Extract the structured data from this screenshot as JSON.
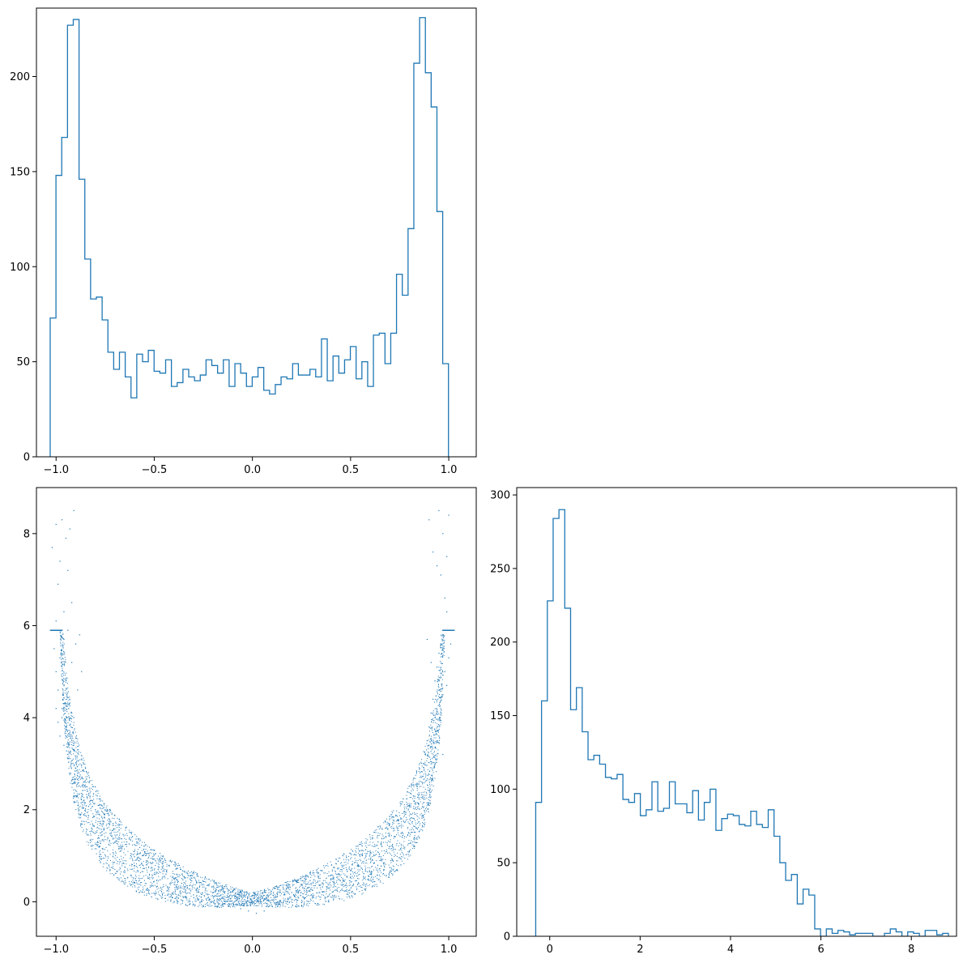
{
  "chart_data": [
    {
      "id": "hist_x",
      "type": "histogram",
      "title": "",
      "xlabel": "",
      "ylabel": "",
      "xlim": [
        -1.1,
        1.14
      ],
      "ylim": [
        0,
        236
      ],
      "xticks": [
        -1.0,
        -0.5,
        0.0,
        0.5,
        1.0
      ],
      "xtick_labels": [
        "−1.0",
        "−0.5",
        "0.0",
        "0.5",
        "1.0"
      ],
      "yticks": [
        0,
        50,
        100,
        150,
        200
      ],
      "ytick_labels": [
        "0",
        "50",
        "100",
        "150",
        "200"
      ],
      "grid": false,
      "bin_start": -1.03,
      "bin_width": 0.0294,
      "counts": [
        73,
        148,
        168,
        227,
        230,
        146,
        104,
        83,
        84,
        72,
        55,
        46,
        55,
        42,
        31,
        54,
        50,
        56,
        45,
        44,
        51,
        37,
        39,
        46,
        42,
        40,
        43,
        51,
        48,
        44,
        51,
        37,
        49,
        44,
        37,
        42,
        47,
        35,
        33,
        38,
        42,
        41,
        49,
        43,
        43,
        46,
        42,
        62,
        40,
        53,
        44,
        51,
        58,
        41,
        50,
        37,
        64,
        65,
        49,
        65,
        96,
        85,
        120,
        207,
        231,
        202,
        184,
        129,
        49
      ],
      "color": "#1f77b4"
    },
    {
      "id": "scatter_xy",
      "type": "scatter",
      "title": "",
      "xlabel": "",
      "ylabel": "",
      "xlim": [
        -1.1,
        1.14
      ],
      "ylim": [
        -0.75,
        9.0
      ],
      "xticks": [
        -1.0,
        -0.5,
        0.0,
        0.5,
        1.0
      ],
      "xtick_labels": [
        "−1.0",
        "−0.5",
        "0.0",
        "0.5",
        "1.0"
      ],
      "yticks": [
        0,
        2,
        4,
        6,
        8
      ],
      "ytick_labels": [
        "0",
        "2",
        "4",
        "6",
        "8"
      ],
      "grid": false,
      "relation": "y ≈ (x/(1−x²)^0.5)²-shaped band; points fill a U-shaped band from y≈−0.3 at x=0 up to y≈8.5 near x=±1",
      "points": [
        [
          -1.02,
          7.7
        ],
        [
          -1.0,
          8.2
        ],
        [
          -0.98,
          7.4
        ],
        [
          -0.97,
          8.3
        ],
        [
          -0.95,
          7.9
        ],
        [
          -0.93,
          8.1
        ],
        [
          -0.91,
          8.5
        ],
        [
          -0.99,
          6.9
        ],
        [
          -0.96,
          6.3
        ],
        [
          -0.92,
          6.5
        ],
        [
          -1.0,
          6.1
        ],
        [
          -0.94,
          7.2
        ],
        [
          -1.01,
          5.5
        ],
        [
          -1.0,
          5.0
        ],
        [
          -0.99,
          4.6
        ],
        [
          -0.98,
          5.3
        ],
        [
          -0.97,
          4.2
        ],
        [
          -0.96,
          5.7
        ],
        [
          -0.95,
          4.8
        ],
        [
          -0.94,
          5.9
        ],
        [
          -0.93,
          4.4
        ],
        [
          -0.92,
          5.2
        ],
        [
          -0.91,
          4.0
        ],
        [
          -0.9,
          5.6
        ],
        [
          -0.89,
          4.6
        ],
        [
          -0.88,
          5.8
        ],
        [
          -0.87,
          5.0
        ],
        [
          -1.0,
          4.2
        ],
        [
          -0.99,
          3.9
        ],
        [
          -0.98,
          3.6
        ],
        [
          -0.97,
          4.0
        ],
        [
          -0.96,
          3.4
        ],
        [
          -0.95,
          3.8
        ],
        [
          -0.94,
          3.2
        ],
        [
          -0.93,
          3.6
        ],
        [
          -0.92,
          3.0
        ],
        [
          -0.91,
          3.4
        ],
        [
          -0.9,
          2.9
        ],
        [
          -0.89,
          3.3
        ],
        [
          -0.88,
          2.7
        ],
        [
          -0.87,
          3.1
        ],
        [
          -0.86,
          2.6
        ],
        [
          -0.85,
          2.9
        ],
        [
          -0.84,
          2.4
        ],
        [
          -0.83,
          2.7
        ],
        [
          -0.82,
          2.2
        ],
        [
          -0.81,
          2.5
        ],
        [
          -0.8,
          2.0
        ],
        [
          -0.79,
          2.3
        ],
        [
          -0.78,
          1.9
        ],
        [
          -0.77,
          2.1
        ],
        [
          -0.76,
          1.7
        ],
        [
          -0.75,
          2.0
        ],
        [
          -0.74,
          1.6
        ],
        [
          -0.73,
          1.8
        ],
        [
          -0.72,
          1.5
        ],
        [
          -0.71,
          1.7
        ],
        [
          -0.7,
          1.3
        ],
        [
          -0.68,
          1.4
        ],
        [
          -0.66,
          1.2
        ],
        [
          -0.64,
          1.3
        ],
        [
          -0.62,
          1.0
        ],
        [
          -0.6,
          1.1
        ],
        [
          -0.58,
          0.9
        ],
        [
          -0.56,
          1.0
        ],
        [
          -0.54,
          0.8
        ],
        [
          -0.52,
          0.85
        ],
        [
          -0.5,
          0.6
        ],
        [
          -0.48,
          0.7
        ],
        [
          -0.46,
          0.5
        ],
        [
          -0.44,
          0.6
        ],
        [
          -0.42,
          0.4
        ],
        [
          -0.4,
          0.5
        ],
        [
          -0.38,
          0.3
        ],
        [
          -0.36,
          0.4
        ],
        [
          -0.34,
          0.2
        ],
        [
          -0.32,
          0.35
        ],
        [
          -0.3,
          0.15
        ],
        [
          -0.28,
          0.3
        ],
        [
          -0.26,
          0.1
        ],
        [
          -0.24,
          0.25
        ],
        [
          -0.22,
          0.05
        ],
        [
          -0.2,
          0.2
        ],
        [
          -0.18,
          0.0
        ],
        [
          -0.16,
          0.15
        ],
        [
          -0.14,
          -0.05
        ],
        [
          -0.12,
          0.1
        ],
        [
          -0.1,
          -0.1
        ],
        [
          -0.08,
          0.1
        ],
        [
          -0.06,
          -0.15
        ],
        [
          -0.04,
          0.05
        ],
        [
          -0.02,
          -0.2
        ],
        [
          0.0,
          0.0
        ],
        [
          0.02,
          -0.25
        ],
        [
          0.04,
          0.05
        ],
        [
          0.06,
          -0.2
        ],
        [
          0.08,
          0.1
        ],
        [
          0.1,
          -0.1
        ],
        [
          0.12,
          0.1
        ],
        [
          0.14,
          -0.05
        ],
        [
          0.16,
          0.15
        ],
        [
          0.18,
          0.0
        ],
        [
          0.2,
          0.2
        ],
        [
          0.22,
          0.05
        ],
        [
          0.24,
          0.25
        ],
        [
          0.26,
          0.1
        ],
        [
          0.28,
          0.3
        ],
        [
          0.3,
          0.15
        ],
        [
          0.32,
          0.35
        ],
        [
          0.34,
          0.2
        ],
        [
          0.36,
          0.4
        ],
        [
          0.38,
          0.3
        ],
        [
          0.4,
          0.5
        ],
        [
          0.42,
          0.4
        ],
        [
          0.44,
          0.6
        ],
        [
          0.46,
          0.5
        ],
        [
          0.48,
          0.7
        ],
        [
          0.5,
          0.6
        ],
        [
          0.52,
          0.85
        ],
        [
          0.54,
          0.8
        ],
        [
          0.56,
          1.0
        ],
        [
          0.58,
          0.9
        ],
        [
          0.6,
          1.1
        ],
        [
          0.62,
          1.0
        ],
        [
          0.64,
          1.3
        ],
        [
          0.66,
          1.2
        ],
        [
          0.68,
          1.4
        ],
        [
          0.7,
          1.3
        ],
        [
          0.72,
          1.6
        ],
        [
          0.74,
          1.6
        ],
        [
          0.76,
          1.8
        ],
        [
          0.78,
          1.9
        ],
        [
          0.8,
          2.1
        ],
        [
          0.82,
          2.3
        ],
        [
          0.84,
          2.5
        ],
        [
          0.86,
          2.7
        ],
        [
          0.87,
          3.0
        ],
        [
          0.88,
          3.2
        ],
        [
          0.89,
          3.5
        ],
        [
          0.9,
          3.8
        ],
        [
          0.91,
          4.1
        ],
        [
          0.92,
          4.4
        ],
        [
          0.93,
          4.8
        ],
        [
          0.94,
          5.1
        ],
        [
          0.95,
          5.4
        ],
        [
          0.96,
          5.6
        ],
        [
          0.97,
          4.5
        ],
        [
          0.98,
          5.0
        ],
        [
          0.89,
          5.7
        ],
        [
          0.91,
          5.2
        ],
        [
          0.93,
          4.0
        ],
        [
          0.95,
          3.6
        ],
        [
          0.97,
          3.2
        ],
        [
          0.99,
          4.7
        ],
        [
          1.0,
          5.3
        ],
        [
          1.01,
          5.6
        ],
        [
          0.99,
          6.3
        ],
        [
          0.98,
          6.6
        ],
        [
          0.96,
          7.1
        ],
        [
          0.94,
          7.3
        ],
        [
          0.92,
          7.6
        ],
        [
          0.9,
          8.3
        ],
        [
          0.97,
          8.0
        ],
        [
          0.99,
          7.5
        ],
        [
          1.0,
          8.4
        ],
        [
          0.95,
          8.5
        ]
      ],
      "color": "#1f77b4"
    },
    {
      "id": "hist_y",
      "type": "histogram",
      "title": "",
      "xlabel": "",
      "ylabel": "",
      "xlim": [
        -0.73,
        9.0
      ],
      "ylim": [
        0,
        305
      ],
      "xticks": [
        0,
        2,
        4,
        6,
        8
      ],
      "xtick_labels": [
        "0",
        "2",
        "4",
        "6",
        "8"
      ],
      "yticks": [
        0,
        50,
        100,
        150,
        200,
        250,
        300
      ],
      "ytick_labels": [
        "0",
        "50",
        "100",
        "150",
        "200",
        "250",
        "300"
      ],
      "grid": false,
      "bin_start": -0.31,
      "bin_width": 0.1286,
      "counts": [
        91,
        160,
        228,
        284,
        290,
        223,
        154,
        169,
        139,
        120,
        123,
        117,
        108,
        107,
        110,
        93,
        91,
        97,
        82,
        86,
        105,
        85,
        87,
        105,
        90,
        90,
        84,
        99,
        79,
        91,
        100,
        72,
        80,
        83,
        82,
        76,
        75,
        85,
        76,
        74,
        86,
        68,
        50,
        38,
        42,
        22,
        32,
        28,
        5,
        0,
        5,
        2,
        4,
        3,
        1,
        2,
        2,
        2,
        0,
        0,
        2,
        5,
        3,
        0,
        3,
        2,
        0,
        4,
        4,
        1,
        2
      ]
    }
  ]
}
